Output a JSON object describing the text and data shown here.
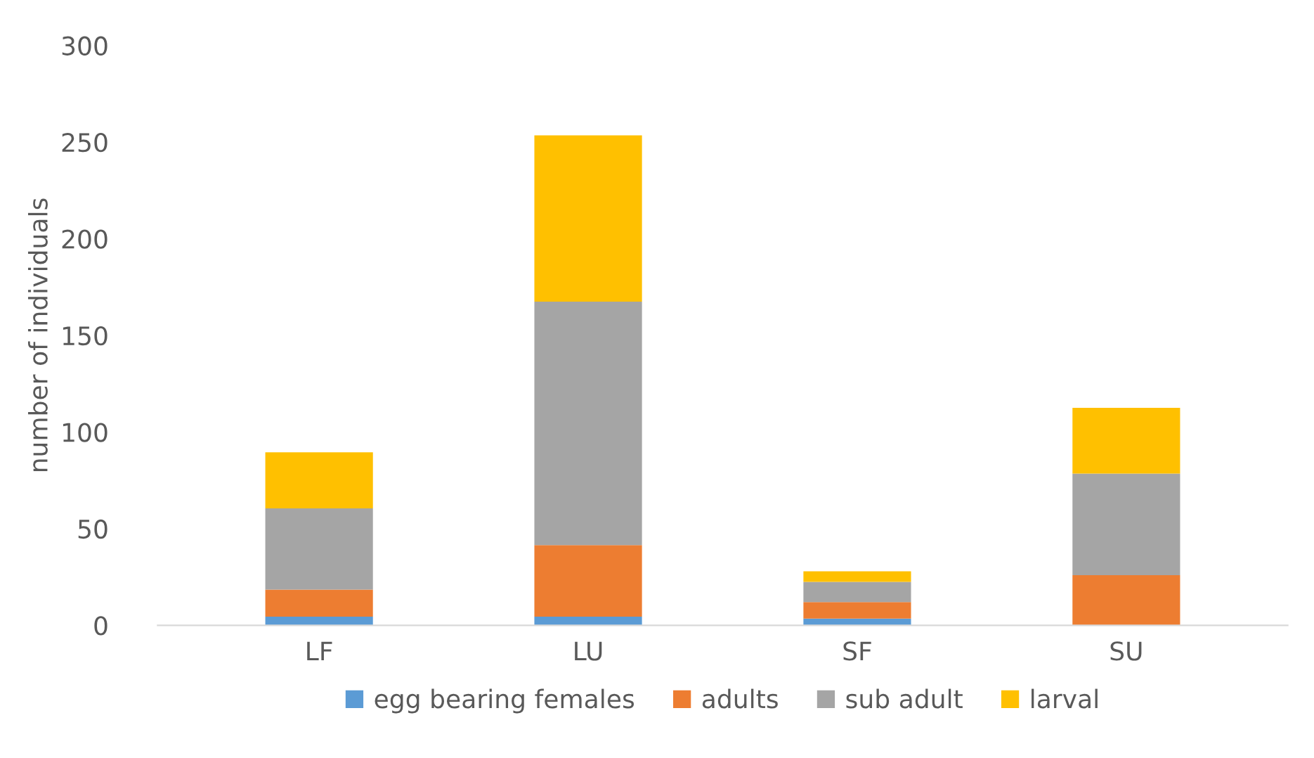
{
  "chart_data": {
    "type": "bar",
    "stacked": true,
    "ylabel": "number of individuals",
    "categories": [
      "LF",
      "LU",
      "SF",
      "SU"
    ],
    "series": [
      {
        "name": "egg bearing females",
        "color": "#5b9bd5",
        "values": [
          4.5,
          4.5,
          3.5,
          0
        ]
      },
      {
        "name": "adults",
        "color": "#ed7d31",
        "values": [
          14,
          37,
          8.5,
          26
        ]
      },
      {
        "name": "sub adult",
        "color": "#a5a5a5",
        "values": [
          42,
          126,
          10.5,
          52.5
        ]
      },
      {
        "name": "larval",
        "color": "#ffc000",
        "values": [
          29,
          86,
          5.5,
          34
        ]
      }
    ],
    "ylim": [
      0,
      300
    ],
    "yticks": [
      0,
      50,
      100,
      150,
      200,
      250,
      300
    ],
    "grid": false,
    "legend": "bottom"
  }
}
